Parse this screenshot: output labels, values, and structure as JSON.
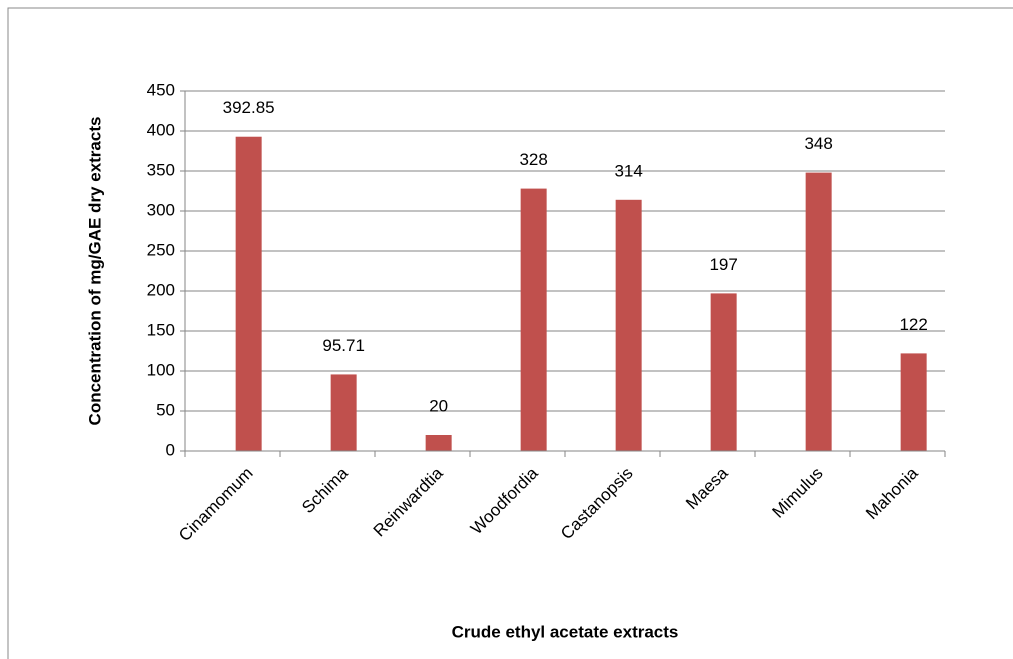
{
  "chart_data": {
    "type": "bar",
    "categories": [
      "Cinamomum",
      "Schima",
      "Reinwardtia",
      "Woodfordia",
      "Castanopsis",
      "Maesa",
      "Mimulus",
      "Mahonia"
    ],
    "values": [
      392.85,
      95.71,
      20,
      328,
      314,
      197,
      348,
      122
    ],
    "color": "#c0504d",
    "xlabel": "Crude ethyl acetate extracts",
    "ylabel": "Concentration of mg/GAE dry extracts",
    "ylim": [
      0,
      450
    ],
    "yticks": [
      0,
      50,
      100,
      150,
      200,
      250,
      300,
      350,
      400,
      450
    ],
    "grid": true
  }
}
